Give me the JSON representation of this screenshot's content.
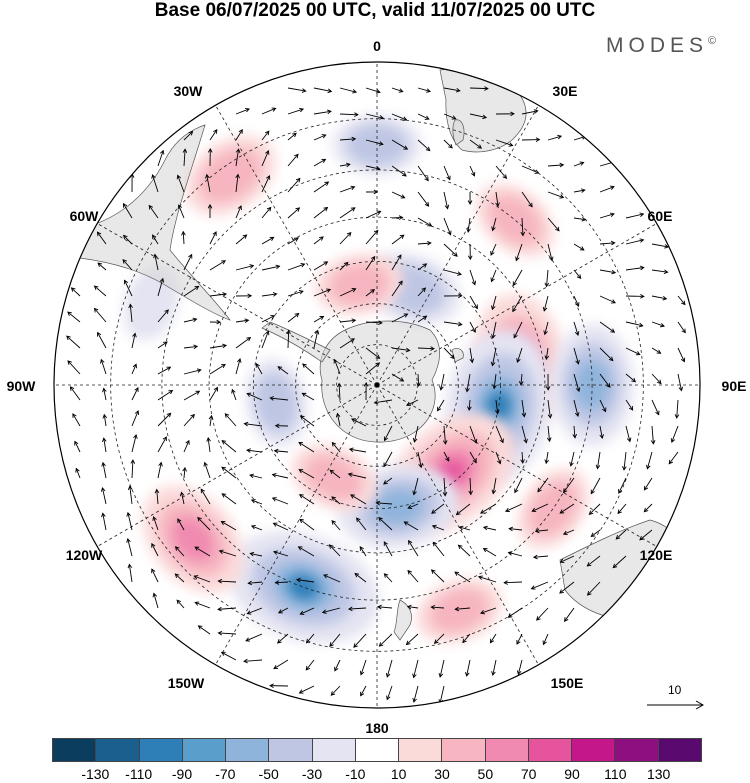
{
  "title": "Base 06/07/2025 00 UTC, valid 11/07/2025 00 UTC",
  "brand": "MODES",
  "brand_mark": "©",
  "map": {
    "projection": "south-polar-stereographic",
    "labels": {
      "top": "0",
      "bottom": "180",
      "left": "90W",
      "right": "90E",
      "upper_left": "30W",
      "upper_right": "30E",
      "mid_left_upper": "60W",
      "mid_right_upper": "60E",
      "mid_left_lower": "120W",
      "mid_right_lower": "120E",
      "lower_left": "150W",
      "lower_right": "150E"
    },
    "reference_vector": "10",
    "anomalies": [
      {
        "lon": 0,
        "lat": -35,
        "value": -30
      },
      {
        "lon": -35,
        "lat": -32,
        "value": 40
      },
      {
        "lon": 40,
        "lat": -40,
        "value": 30
      },
      {
        "lon": 80,
        "lat": -55,
        "value": 70
      },
      {
        "lon": 100,
        "lat": -60,
        "value": -90
      },
      {
        "lon": 90,
        "lat": -40,
        "value": -60
      },
      {
        "lon": 140,
        "lat": -62,
        "value": 80
      },
      {
        "lon": 125,
        "lat": -40,
        "value": 30
      },
      {
        "lon": 170,
        "lat": -60,
        "value": -60
      },
      {
        "lon": -160,
        "lat": -40,
        "value": -90
      },
      {
        "lon": -130,
        "lat": -35,
        "value": 60
      },
      {
        "lon": -155,
        "lat": -65,
        "value": 30
      },
      {
        "lon": 160,
        "lat": -35,
        "value": 30
      },
      {
        "lon": 20,
        "lat": -65,
        "value": -40
      },
      {
        "lon": -10,
        "lat": -65,
        "value": 30
      },
      {
        "lon": -100,
        "lat": -65,
        "value": -30
      },
      {
        "lon": -70,
        "lat": -35,
        "value": -20
      }
    ]
  },
  "colorbar": {
    "colors": [
      "#0b3d5e",
      "#1a5f8e",
      "#2e7fb8",
      "#5a9fcc",
      "#8fb4dc",
      "#bec6e4",
      "#e4e4f2",
      "#ffffff",
      "#fbdada",
      "#f6b5c0",
      "#f08ab0",
      "#e5549d",
      "#c4188a",
      "#8e0f7f",
      "#5a0a6e"
    ],
    "ticks": [
      "-130",
      "-110",
      "-90",
      "-70",
      "-50",
      "-30",
      "-10",
      "10",
      "30",
      "50",
      "70",
      "90",
      "110",
      "130"
    ]
  }
}
